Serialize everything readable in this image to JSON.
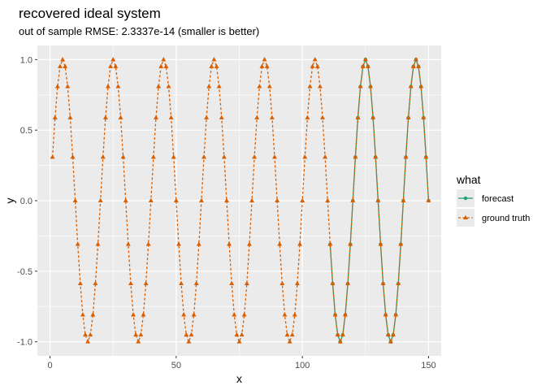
{
  "chart_data": {
    "type": "line",
    "title": "recovered ideal system",
    "subtitle": "out of sample RMSE: 2.3337e-14 (smaller is better)",
    "xlabel": "x",
    "ylabel": "y",
    "xlim": [
      -5,
      155
    ],
    "ylim": [
      -1.1,
      1.1
    ],
    "x_ticks": [
      0,
      50,
      100,
      150
    ],
    "x_tick_labels": [
      "0",
      "50",
      "100",
      "150"
    ],
    "y_ticks": [
      -1.0,
      -0.5,
      0.0,
      0.5,
      1.0
    ],
    "y_tick_labels": [
      "-1.0",
      "-0.5",
      "0.0",
      "0.5",
      "1.0"
    ],
    "grid": true,
    "legend_placement": "right",
    "legend_title": "what",
    "period": 20,
    "series": [
      {
        "name": "forecast",
        "color": "#1b9e77",
        "marker": "circle",
        "line": "solid",
        "x_start": 111,
        "x_end": 150,
        "formula": "sin(2*pi*x/20)"
      },
      {
        "name": "ground truth",
        "color": "#d95f02",
        "marker": "triangle",
        "line": "dashed",
        "x_start": 1,
        "x_end": 150,
        "formula": "sin(2*pi*x/20)"
      }
    ]
  }
}
